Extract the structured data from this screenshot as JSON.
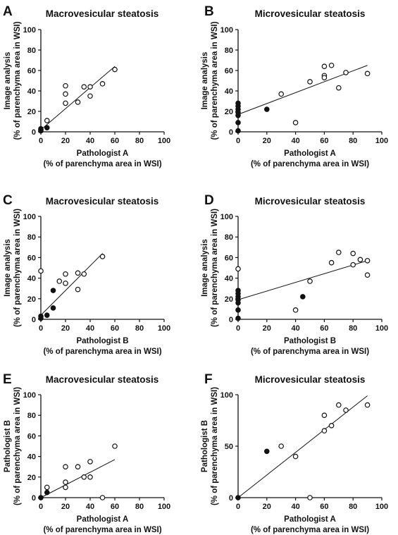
{
  "chart_data": [
    {
      "panel": "A",
      "type": "scatter",
      "title": "Macrovesicular steatosis",
      "xlabel": [
        "Pathologist A",
        "(% of parenchyma area in WSI)"
      ],
      "ylabel": [
        "Image analysis",
        "(% of parenchyma area in WSI)"
      ],
      "xlim": [
        0,
        100
      ],
      "ylim": [
        0,
        100
      ],
      "xticks": [
        0,
        20,
        40,
        60,
        80,
        100
      ],
      "yticks": [
        0,
        20,
        40,
        60,
        80,
        100
      ],
      "series": [
        {
          "marker": "open",
          "points": [
            [
              5,
              11
            ],
            [
              20,
              45
            ],
            [
              20,
              37
            ],
            [
              20,
              28
            ],
            [
              30,
              29
            ],
            [
              35,
              44
            ],
            [
              40,
              44
            ],
            [
              40,
              35
            ],
            [
              50,
              47
            ],
            [
              60,
              61
            ]
          ]
        },
        {
          "marker": "filled",
          "points": [
            [
              0,
              1
            ],
            [
              0,
              2
            ],
            [
              0,
              3
            ],
            [
              5,
              4
            ]
          ]
        }
      ],
      "fit": [
        [
          0,
          2
        ],
        [
          60,
          64
        ]
      ]
    },
    {
      "panel": "B",
      "type": "scatter",
      "title": "Microvesicular steatosis",
      "xlabel": [
        "Pathologist A",
        "(% of parenchyma area in WSI)"
      ],
      "ylabel": [
        "Image analysis",
        "(% of parenchyma area in WSI)"
      ],
      "xlim": [
        0,
        100
      ],
      "ylim": [
        0,
        100
      ],
      "xticks": [
        0,
        20,
        40,
        60,
        80,
        100
      ],
      "yticks": [
        0,
        20,
        40,
        60,
        80,
        100
      ],
      "series": [
        {
          "marker": "open",
          "points": [
            [
              30,
              37
            ],
            [
              40,
              9
            ],
            [
              50,
              49
            ],
            [
              60,
              64
            ],
            [
              60,
              55
            ],
            [
              60,
              53
            ],
            [
              65,
              65
            ],
            [
              70,
              43
            ],
            [
              75,
              58
            ],
            [
              90,
              57
            ]
          ]
        },
        {
          "marker": "filled",
          "points": [
            [
              0,
              1
            ],
            [
              0,
              9
            ],
            [
              0,
              16
            ],
            [
              0,
              19
            ],
            [
              0,
              22
            ],
            [
              0,
              25
            ],
            [
              0,
              28
            ],
            [
              20,
              22
            ]
          ]
        }
      ],
      "fit": [
        [
          0,
          17
        ],
        [
          90,
          65
        ]
      ]
    },
    {
      "panel": "C",
      "type": "scatter",
      "title": "Macrovesicular steatosis",
      "xlabel": [
        "Pathologist B",
        "(% of parenchyma area in WSI)"
      ],
      "ylabel": [
        "Image analysis",
        "(% of parenchyma area in WSI)"
      ],
      "xlim": [
        0,
        100
      ],
      "ylim": [
        0,
        100
      ],
      "xticks": [
        0,
        20,
        40,
        60,
        80,
        100
      ],
      "yticks": [
        0,
        20,
        40,
        60,
        80,
        100
      ],
      "series": [
        {
          "marker": "open",
          "points": [
            [
              0,
              47
            ],
            [
              15,
              37
            ],
            [
              20,
              44
            ],
            [
              20,
              35
            ],
            [
              30,
              45
            ],
            [
              30,
              29
            ],
            [
              35,
              44
            ],
            [
              50,
              61
            ]
          ]
        },
        {
          "marker": "filled",
          "points": [
            [
              0,
              1
            ],
            [
              0,
              3
            ],
            [
              5,
              4
            ],
            [
              10,
              11
            ],
            [
              10,
              28
            ]
          ]
        }
      ],
      "fit": [
        [
          0,
          4
        ],
        [
          50,
          64
        ]
      ]
    },
    {
      "panel": "D",
      "type": "scatter",
      "title": "Microvesicular steatosis",
      "xlabel": [
        "Pathologist B",
        "(% of parenchyma area in WSI)"
      ],
      "ylabel": [
        "Image analysis",
        "(% of parenchyma area in WSI)"
      ],
      "xlim": [
        0,
        100
      ],
      "ylim": [
        0,
        100
      ],
      "xticks": [
        0,
        20,
        40,
        60,
        80,
        100
      ],
      "yticks": [
        0,
        20,
        40,
        60,
        80,
        100
      ],
      "series": [
        {
          "marker": "open",
          "points": [
            [
              0,
              49
            ],
            [
              40,
              9
            ],
            [
              50,
              37
            ],
            [
              65,
              55
            ],
            [
              70,
              65
            ],
            [
              80,
              64
            ],
            [
              80,
              53
            ],
            [
              85,
              58
            ],
            [
              90,
              57
            ],
            [
              90,
              43
            ]
          ]
        },
        {
          "marker": "filled",
          "points": [
            [
              0,
              1
            ],
            [
              0,
              9
            ],
            [
              0,
              16
            ],
            [
              0,
              19
            ],
            [
              0,
              22
            ],
            [
              0,
              25
            ],
            [
              0,
              28
            ],
            [
              45,
              22
            ]
          ]
        }
      ],
      "fit": [
        [
          0,
          19
        ],
        [
          90,
          57
        ]
      ]
    },
    {
      "panel": "E",
      "type": "scatter",
      "title": "Macrovesicular steatosis",
      "xlabel": [
        "Pathologist A",
        "(% of parenchyma area in WSI)"
      ],
      "ylabel": [
        "Pathologist B",
        "(% of parenchyma area in WSI)"
      ],
      "xlim": [
        0,
        100
      ],
      "ylim": [
        0,
        100
      ],
      "xticks": [
        0,
        20,
        40,
        60,
        80,
        100
      ],
      "yticks": [
        0,
        20,
        40,
        60,
        80,
        100
      ],
      "series": [
        {
          "marker": "open",
          "points": [
            [
              5,
              10
            ],
            [
              20,
              30
            ],
            [
              20,
              15
            ],
            [
              20,
              10
            ],
            [
              30,
              30
            ],
            [
              35,
              20
            ],
            [
              40,
              35
            ],
            [
              40,
              20
            ],
            [
              50,
              0
            ],
            [
              60,
              50
            ]
          ]
        },
        {
          "marker": "filled",
          "points": [
            [
              0,
              0
            ],
            [
              5,
              5
            ]
          ]
        }
      ],
      "fit": [
        [
          0,
          0
        ],
        [
          60,
          37
        ]
      ]
    },
    {
      "panel": "F",
      "type": "scatter",
      "title": "Microvesicular steatosis",
      "xlabel": [
        "Pathologist A",
        "(% of parenchyma area in WSI)"
      ],
      "ylabel": [
        "Pathologist B",
        "(% of parenchyma area in WSI)"
      ],
      "xlim": [
        0,
        100
      ],
      "ylim": [
        0,
        100
      ],
      "xticks": [
        0,
        20,
        40,
        60,
        80,
        100
      ],
      "yticks": [
        0,
        50,
        100
      ],
      "series": [
        {
          "marker": "open",
          "points": [
            [
              30,
              50
            ],
            [
              40,
              40
            ],
            [
              50,
              0
            ],
            [
              60,
              80
            ],
            [
              60,
              65
            ],
            [
              65,
              70
            ],
            [
              70,
              90
            ],
            [
              75,
              85
            ],
            [
              90,
              90
            ]
          ]
        },
        {
          "marker": "filled",
          "points": [
            [
              0,
              0
            ],
            [
              20,
              45
            ]
          ]
        }
      ],
      "fit": [
        [
          0,
          0
        ],
        [
          90,
          99
        ]
      ]
    }
  ]
}
